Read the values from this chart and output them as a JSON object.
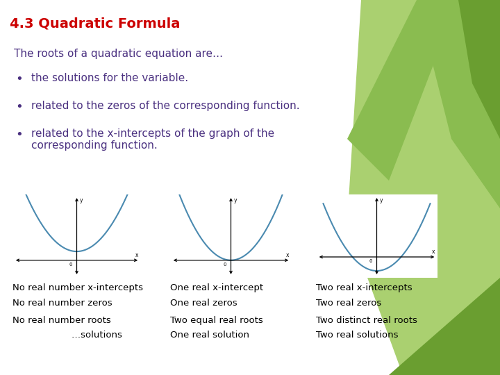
{
  "title": "4.3 Quadratic Formula",
  "title_color": "#cc0000",
  "title_fontsize": 14,
  "bg_color": "#ffffff",
  "text_color": "#4a3080",
  "body_text": "The roots of a quadratic equation are…",
  "body_fontsize": 11,
  "bullet_fontsize": 11,
  "bullets": [
    "the solutions for the variable.",
    "related to the zeros of the corresponding function.",
    "related to the x-intercepts of the graph of the\ncorresponding function."
  ],
  "col1_labels": [
    "No real number x-intercepts",
    "No real number zeros",
    "No real number roots",
    "                    …solutions"
  ],
  "col2_labels": [
    "One real x-intercept",
    "One real zeros",
    "Two equal real roots",
    "One real solution"
  ],
  "col3_labels": [
    "Two real x-intercepts",
    "Two real zeros",
    "Two distinct real roots",
    "Two real solutions"
  ],
  "green_dark": "#4a7a20",
  "green_mid": "#6a9e30",
  "green_light": "#8abc50",
  "green_pale": "#aad070",
  "label_fontsize": 9.5,
  "curve_color": "#4a8ab0"
}
